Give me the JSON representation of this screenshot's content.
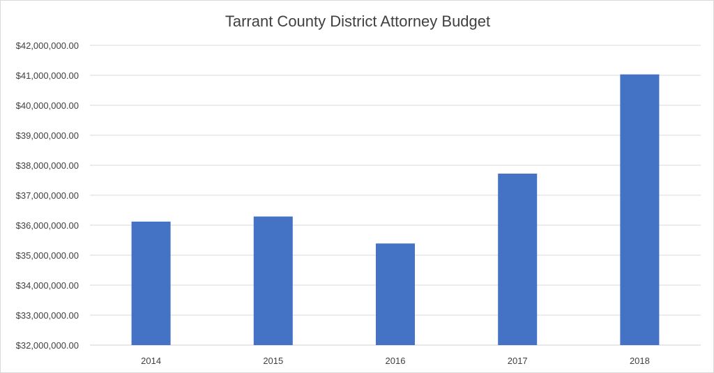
{
  "chart_data": {
    "type": "bar",
    "title": "Tarrant County District Attorney Budget",
    "categories": [
      "2014",
      "2015",
      "2016",
      "2017",
      "2018"
    ],
    "values": [
      36120000,
      36290000,
      35390000,
      37720000,
      41030000
    ],
    "ylim": [
      32000000,
      42000000
    ],
    "yticks": [
      32000000,
      33000000,
      34000000,
      35000000,
      36000000,
      37000000,
      38000000,
      39000000,
      40000000,
      41000000,
      42000000
    ],
    "ytick_labels": [
      "$32,000,000.00",
      "$33,000,000.00",
      "$34,000,000.00",
      "$35,000,000.00",
      "$36,000,000.00",
      "$37,000,000.00",
      "$38,000,000.00",
      "$39,000,000.00",
      "$40,000,000.00",
      "$41,000,000.00",
      "$42,000,000.00"
    ],
    "xlabel": "",
    "ylabel": "",
    "grid": true,
    "legend": "none",
    "bar_color": "#4472c4",
    "grid_color": "#d9d9d9"
  }
}
